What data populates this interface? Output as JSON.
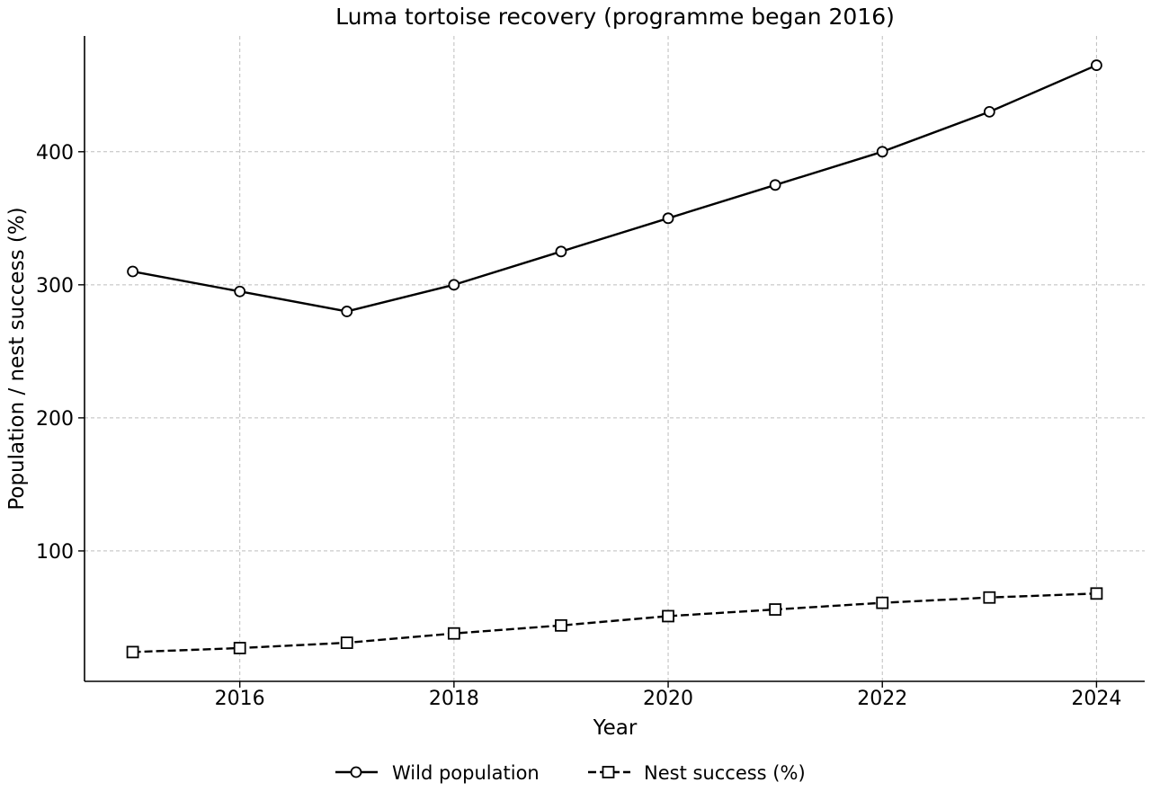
{
  "chart_data": {
    "type": "line",
    "title": "Luma tortoise recovery (programme began 2016)",
    "xlabel": "Year",
    "ylabel": "Population / nest success (%)",
    "x": [
      2015,
      2016,
      2017,
      2018,
      2019,
      2020,
      2021,
      2022,
      2023,
      2024
    ],
    "xlim": [
      2014.55,
      2024.45
    ],
    "ylim": [
      2,
      487
    ],
    "xticks": [
      2016,
      2018,
      2020,
      2022,
      2024
    ],
    "yticks": [
      100,
      200,
      300,
      400
    ],
    "grid": true,
    "legend_position": "bottom-center",
    "series": [
      {
        "name": "Wild population",
        "values": [
          310,
          295,
          280,
          300,
          325,
          350,
          375,
          400,
          430,
          465
        ],
        "marker": "circle",
        "linestyle": "solid",
        "color": "#000000"
      },
      {
        "name": "Nest success (%)",
        "values": [
          24,
          27,
          31,
          38,
          44,
          51,
          56,
          61,
          65,
          68
        ],
        "marker": "square",
        "linestyle": "dashed",
        "color": "#000000"
      }
    ]
  }
}
